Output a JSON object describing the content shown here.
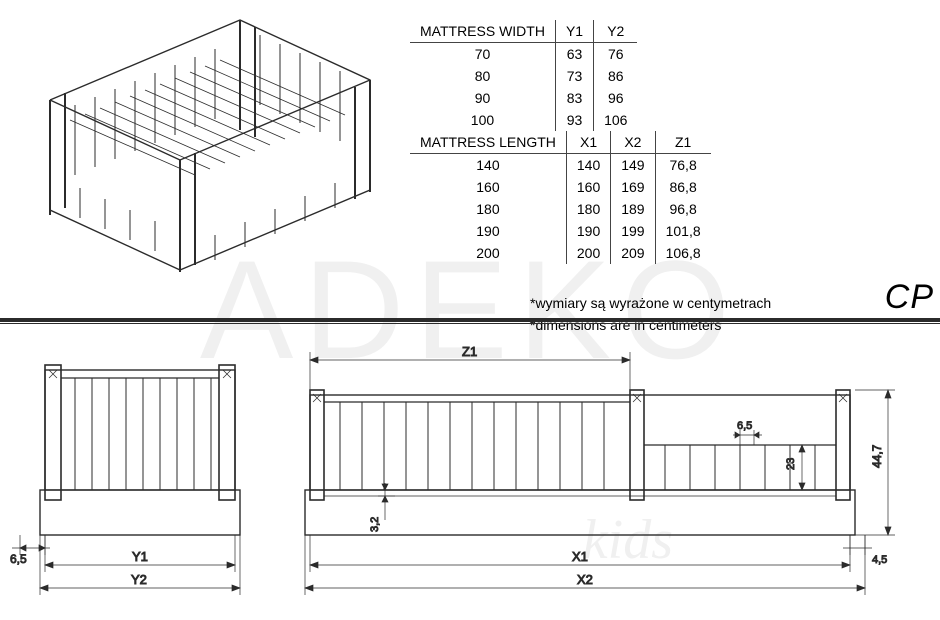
{
  "table1": {
    "headers": [
      "MATTRESS WIDTH",
      "Y1",
      "Y2"
    ],
    "rows": [
      [
        "70",
        "63",
        "76"
      ],
      [
        "80",
        "73",
        "86"
      ],
      [
        "90",
        "83",
        "96"
      ],
      [
        "100",
        "93",
        "106"
      ]
    ]
  },
  "table2": {
    "headers": [
      "MATTRESS LENGTH",
      "X1",
      "X2",
      "Z1"
    ],
    "rows": [
      [
        "140",
        "140",
        "149",
        "76,8"
      ],
      [
        "160",
        "160",
        "169",
        "86,8"
      ],
      [
        "180",
        "180",
        "189",
        "96,8"
      ],
      [
        "190",
        "190",
        "199",
        "101,8"
      ],
      [
        "200",
        "200",
        "209",
        "106,8"
      ]
    ]
  },
  "notes": {
    "line1": "*wymiary są wyrażone w centymetrach",
    "line2": "*dimensions are in centimeters"
  },
  "logo": "CP",
  "watermark": "ADEKO",
  "watermark2": "kids",
  "dims": {
    "z1": "Z1",
    "x1": "X1",
    "x2": "X2",
    "y1": "Y1",
    "y2": "Y2",
    "h_total": "44,7",
    "rail_h": "23",
    "post_w1": "6,5",
    "post_w2": "6,5",
    "right_margin": "4,5",
    "base_h": "3,2"
  },
  "colors": {
    "line": "#2b2b2b",
    "bg": "#ffffff",
    "watermark": "#f0f0f0"
  }
}
